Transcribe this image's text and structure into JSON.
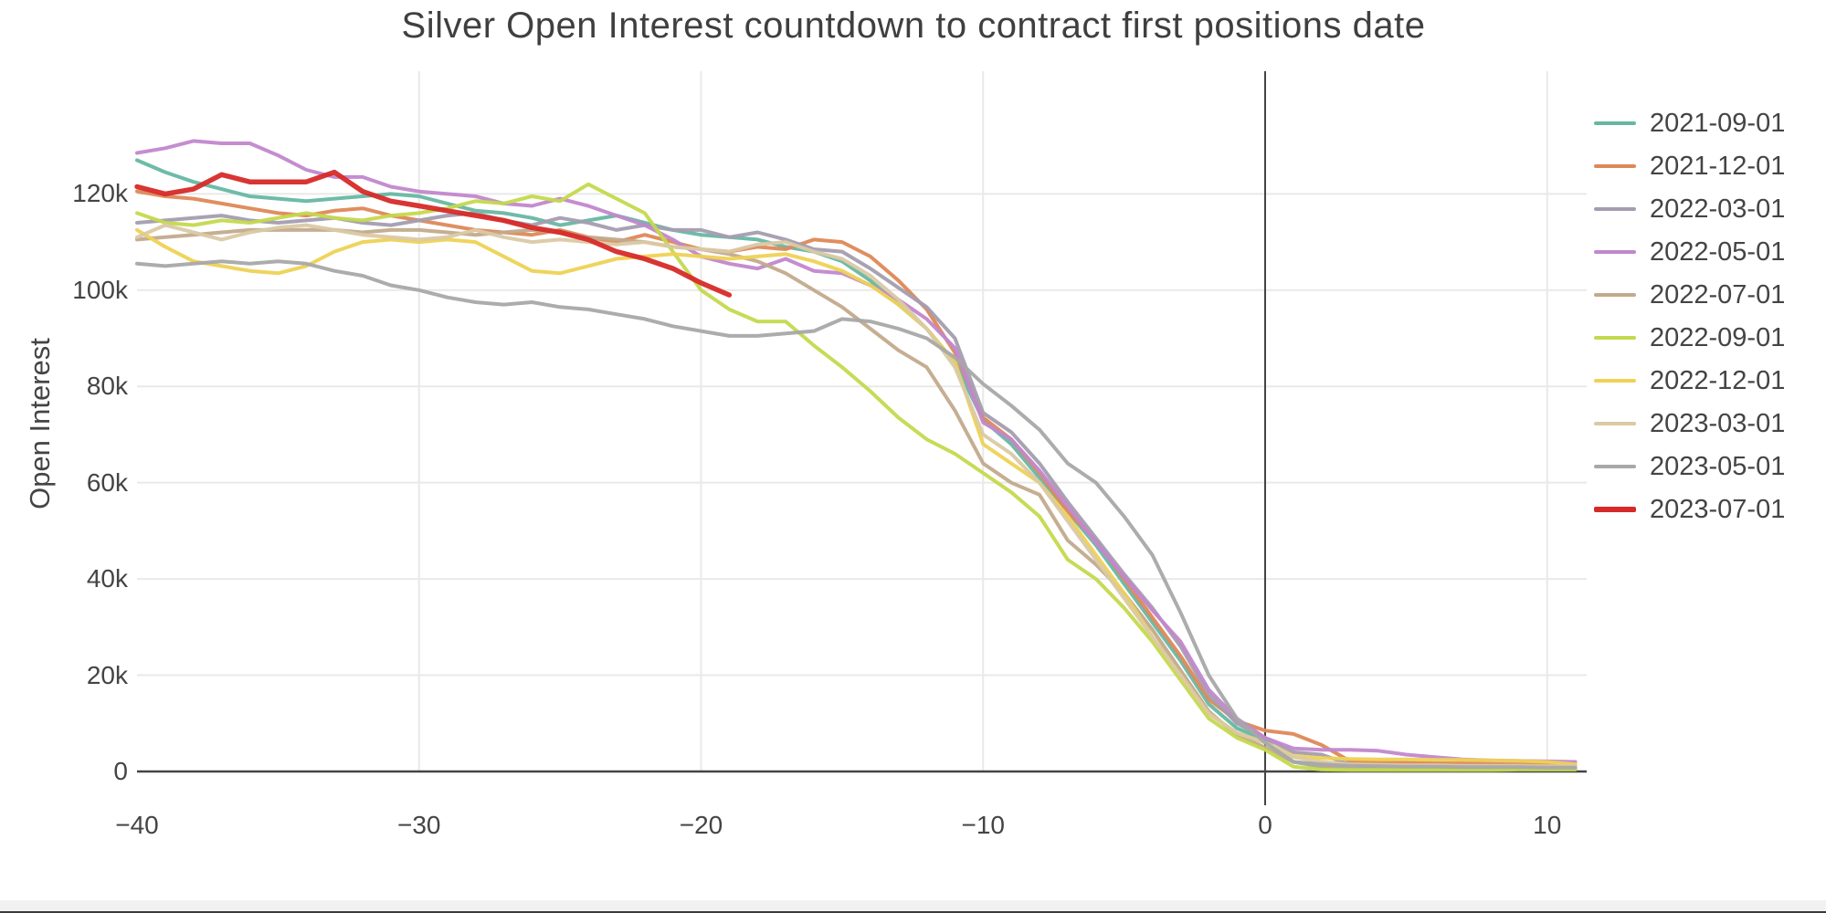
{
  "title": "Silver Open Interest countdown to contract first positions date",
  "y_axis": {
    "label": "Open Interest",
    "ticks": [
      "0",
      "20k",
      "40k",
      "60k",
      "80k",
      "100k",
      "120k"
    ],
    "tick_values": [
      0,
      20,
      40,
      60,
      80,
      100,
      120
    ]
  },
  "x_axis": {
    "ticks": [
      "−40",
      "−30",
      "−20",
      "−10",
      "0",
      "10"
    ],
    "tick_values": [
      -40,
      -30,
      -20,
      -10,
      0,
      10
    ]
  },
  "legend": {
    "items": [
      {
        "label": "2021-09-01",
        "color": "#66b7a3",
        "thick": false
      },
      {
        "label": "2021-12-01",
        "color": "#de8857",
        "thick": false
      },
      {
        "label": "2022-03-01",
        "color": "#a49daf",
        "thick": false
      },
      {
        "label": "2022-05-01",
        "color": "#c287cd",
        "thick": false
      },
      {
        "label": "2022-07-01",
        "color": "#c2aa8c",
        "thick": false
      },
      {
        "label": "2022-09-01",
        "color": "#c4d94d",
        "thick": false
      },
      {
        "label": "2022-12-01",
        "color": "#eed254",
        "thick": false
      },
      {
        "label": "2023-03-01",
        "color": "#dac9a4",
        "thick": false
      },
      {
        "label": "2023-05-01",
        "color": "#a8a8a8",
        "thick": false
      },
      {
        "label": "2023-07-01",
        "color": "#d62a28",
        "thick": true
      }
    ]
  },
  "style": {
    "grid_color": "#e9e9e9",
    "axis_color": "#444444",
    "background": "#ffffff"
  },
  "chart_data": {
    "type": "line",
    "title": "Silver Open Interest countdown to contract first positions date",
    "xlabel": "",
    "ylabel": "Open Interest",
    "x_range": [
      -40.5,
      11.3
    ],
    "ylim": [
      0,
      145000
    ],
    "grid": true,
    "legend_position": "right",
    "values_unit": "thousands of contracts (open interest)",
    "x_unit": "days relative to contract first positions date",
    "x": [
      -40,
      -39,
      -38,
      -37,
      -36,
      -35,
      -34,
      -33,
      -32,
      -31,
      -30,
      -29,
      -28,
      -27,
      -26,
      -25,
      -24,
      -23,
      -22,
      -21,
      -20,
      -19,
      -18,
      -17,
      -16,
      -15,
      -14,
      -13,
      -12,
      -11,
      -10,
      -9,
      -8,
      -7,
      -6,
      -5,
      -4,
      -3,
      -2,
      -1,
      0,
      1,
      2,
      3,
      4,
      5,
      6,
      7,
      8,
      9,
      10,
      11
    ],
    "series": [
      {
        "name": "2021-09-01",
        "color": "#66b7a3",
        "values": [
          127,
          124.5,
          122.5,
          121,
          119.5,
          119,
          118.5,
          119,
          119.5,
          120,
          119.5,
          118,
          116.5,
          116,
          115,
          113.5,
          114.5,
          115.5,
          114,
          112.5,
          111.5,
          111,
          110.5,
          109,
          108,
          106,
          102,
          97,
          92,
          85,
          73,
          68,
          61,
          54,
          47,
          39,
          31,
          23,
          14,
          9,
          6.5,
          2,
          1,
          0.8,
          0.7,
          0.6,
          0.6,
          0.5,
          0.5,
          0.5,
          0.5,
          0.5
        ]
      },
      {
        "name": "2021-12-01",
        "color": "#de8857",
        "values": [
          120.5,
          119.5,
          119,
          118,
          117,
          116,
          115.5,
          116.5,
          117,
          115.5,
          114.5,
          113.5,
          112.5,
          112,
          111.5,
          112.5,
          111,
          110,
          111.5,
          110,
          108.5,
          108,
          109,
          108.5,
          110.5,
          110,
          107,
          102,
          96,
          87,
          73.5,
          69,
          62,
          54,
          48,
          40,
          32,
          24,
          15,
          10.5,
          8.5,
          7.8,
          5.5,
          2.2,
          2,
          1.9,
          1.8,
          1.7,
          1.6,
          1.5,
          1.5,
          1.4
        ]
      },
      {
        "name": "2022-03-01",
        "color": "#a49daf",
        "values": [
          114,
          114.5,
          115,
          115.5,
          114.5,
          114,
          114.5,
          115,
          114,
          113.5,
          114.5,
          115.5,
          116,
          114.5,
          113.5,
          115,
          114,
          112.5,
          113.5,
          112.5,
          112.5,
          111,
          112,
          110.5,
          108.5,
          108,
          104.5,
          100.5,
          96.5,
          90,
          74.5,
          70.5,
          64,
          56,
          48.5,
          41,
          34,
          26,
          16,
          10,
          7,
          4,
          3.5,
          1.5,
          1.3,
          1.2,
          1.2,
          1.1,
          1.1,
          1.1,
          1,
          1
        ]
      },
      {
        "name": "2022-05-01",
        "color": "#c287cd",
        "values": [
          128.5,
          129.5,
          131,
          130.5,
          130.5,
          128,
          125,
          123.5,
          123.5,
          121.5,
          120.5,
          120,
          119.5,
          118,
          117.5,
          119,
          117.5,
          115.5,
          113.5,
          110.5,
          107,
          105.5,
          104.5,
          106.5,
          104,
          103.5,
          101,
          98,
          94,
          88,
          72.5,
          69,
          62.5,
          55,
          47.5,
          40.5,
          33.5,
          27,
          17,
          11,
          7,
          4.8,
          4.5,
          4.5,
          4.3,
          3.5,
          3,
          2.5,
          2.3,
          2.2,
          2.1,
          2
        ]
      },
      {
        "name": "2022-07-01",
        "color": "#c2aa8c",
        "values": [
          110.5,
          111,
          111.5,
          112,
          112.5,
          112.5,
          112.5,
          112.5,
          112,
          112.5,
          112.5,
          112,
          111.5,
          112,
          112.5,
          112,
          111,
          110.5,
          110,
          109,
          108.5,
          107.5,
          106,
          103.5,
          100,
          96.5,
          92,
          87.5,
          84,
          75,
          64,
          60,
          57.5,
          48,
          43,
          37,
          29.5,
          21,
          12.5,
          7.5,
          5,
          2,
          1.2,
          1,
          0.9,
          0.9,
          0.8,
          0.8,
          0.8,
          0.8,
          0.7,
          0.7
        ]
      },
      {
        "name": "2022-09-01",
        "color": "#c4d94d",
        "values": [
          116,
          114,
          113.5,
          114.5,
          114,
          115,
          116,
          115,
          114.5,
          115.5,
          116,
          117,
          118.5,
          118,
          119.5,
          118.5,
          122,
          119,
          116,
          108,
          100,
          96,
          93.5,
          93.5,
          88.5,
          84,
          79,
          73.5,
          69,
          66,
          62,
          58,
          53,
          44,
          40,
          34,
          27,
          19,
          11,
          7,
          4.5,
          1,
          0.4,
          0.3,
          0.3,
          0.3,
          0.3,
          0.3,
          0.3,
          0.4,
          0.4,
          0.4
        ]
      },
      {
        "name": "2022-12-01",
        "color": "#eed254",
        "values": [
          112.5,
          109,
          106,
          105,
          104,
          103.5,
          105,
          108,
          110,
          110.5,
          110,
          110.5,
          110,
          107,
          104,
          103.5,
          105,
          106.5,
          107,
          107.5,
          107,
          106.5,
          107,
          107.5,
          106,
          104,
          101,
          97,
          92,
          85,
          68,
          64,
          60,
          53,
          45,
          37,
          28,
          20,
          12,
          8,
          6,
          3.2,
          2.8,
          2.6,
          2.5,
          2.5,
          2.4,
          2.4,
          2.3,
          2.2,
          2,
          1.5
        ]
      },
      {
        "name": "2023-03-01",
        "color": "#dac9a4",
        "values": [
          111,
          113.5,
          112,
          110.5,
          112,
          113,
          113.5,
          112.5,
          111.5,
          111,
          110.5,
          111,
          112.5,
          111,
          110,
          110.5,
          110,
          109.5,
          110,
          109,
          108.5,
          108,
          109.5,
          110,
          108,
          106.5,
          103,
          98,
          92,
          84,
          70,
          66,
          60,
          52,
          44,
          36,
          28,
          20,
          12,
          8,
          6,
          3,
          2,
          1.5,
          1.4,
          1.3,
          1.3,
          1.2,
          1.2,
          1.2,
          1.1,
          1.1
        ]
      },
      {
        "name": "2023-05-01",
        "color": "#a8a8a8",
        "values": [
          105.5,
          105,
          105.5,
          106,
          105.5,
          106,
          105.5,
          104,
          103,
          101,
          100,
          98.5,
          97.5,
          97,
          97.5,
          96.5,
          96,
          95,
          94,
          92.5,
          91.5,
          90.5,
          90.5,
          91,
          91.5,
          94,
          93.5,
          92,
          90,
          86,
          80.5,
          76,
          71,
          64,
          60,
          53,
          45,
          33,
          20,
          11,
          6,
          2,
          1.5,
          1.2,
          1.1,
          1,
          1,
          0.9,
          0.9,
          0.9,
          0.8,
          0.8
        ]
      },
      {
        "name": "2023-07-01",
        "color": "#d62a28",
        "line_width": 5.5,
        "x": [
          -40,
          -39,
          -38,
          -37,
          -36,
          -35,
          -34,
          -33,
          -32,
          -31,
          -30,
          -29,
          -28,
          -27,
          -26,
          -25,
          -24,
          -23,
          -22,
          -21,
          -20,
          -19
        ],
        "values": [
          121.5,
          120,
          121,
          124,
          122.5,
          122.5,
          122.5,
          124.5,
          120.5,
          118.5,
          117.5,
          116.5,
          115.5,
          114.5,
          113,
          112,
          110.5,
          108,
          106.5,
          104.5,
          101.5,
          99
        ]
      }
    ]
  }
}
